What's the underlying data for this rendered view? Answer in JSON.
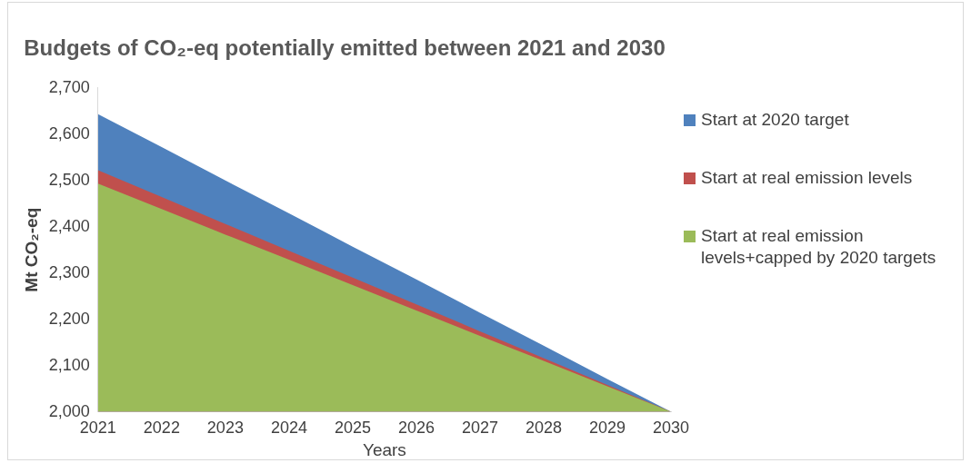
{
  "chart_data": {
    "type": "area",
    "title": "Budgets of CO₂-eq potentially emitted between 2021 and 2030",
    "xlabel": "Years",
    "ylabel": "Mt CO₂-eq",
    "categories": [
      "2021",
      "2022",
      "2023",
      "2024",
      "2025",
      "2026",
      "2027",
      "2028",
      "2029",
      "2030"
    ],
    "series": [
      {
        "name": "Start at 2020 target",
        "color": "#4f81bd",
        "values": [
          2643,
          2572,
          2500,
          2429,
          2357,
          2286,
          2214,
          2143,
          2071,
          2000
        ]
      },
      {
        "name": "Start at real emission levels",
        "color": "#c0504d",
        "values": [
          2522,
          2464,
          2406,
          2348,
          2290,
          2232,
          2174,
          2116,
          2058,
          2000
        ]
      },
      {
        "name": "Start at real emission levels+capped by 2020 targets",
        "color": "#9bbb59",
        "values": [
          2493,
          2438,
          2383,
          2329,
          2274,
          2219,
          2164,
          2110,
          2055,
          2000
        ]
      }
    ],
    "ylim": [
      2000,
      2700
    ],
    "yticks": [
      {
        "value": 2000,
        "label": "2,000"
      },
      {
        "value": 2100,
        "label": "2,100"
      },
      {
        "value": 2200,
        "label": "2,200"
      },
      {
        "value": 2300,
        "label": "2,300"
      },
      {
        "value": 2400,
        "label": "2,400"
      },
      {
        "value": 2500,
        "label": "2,500"
      },
      {
        "value": 2600,
        "label": "2,600"
      },
      {
        "value": 2700,
        "label": "2,700"
      }
    ],
    "grid": false,
    "legend": "right"
  }
}
